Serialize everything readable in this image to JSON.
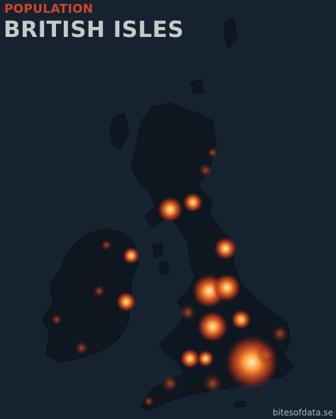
{
  "header": {
    "kicker": "POPULATION",
    "title": "BRITISH ISLES"
  },
  "footer": {
    "credit": "bitesofdata.se"
  }
}
